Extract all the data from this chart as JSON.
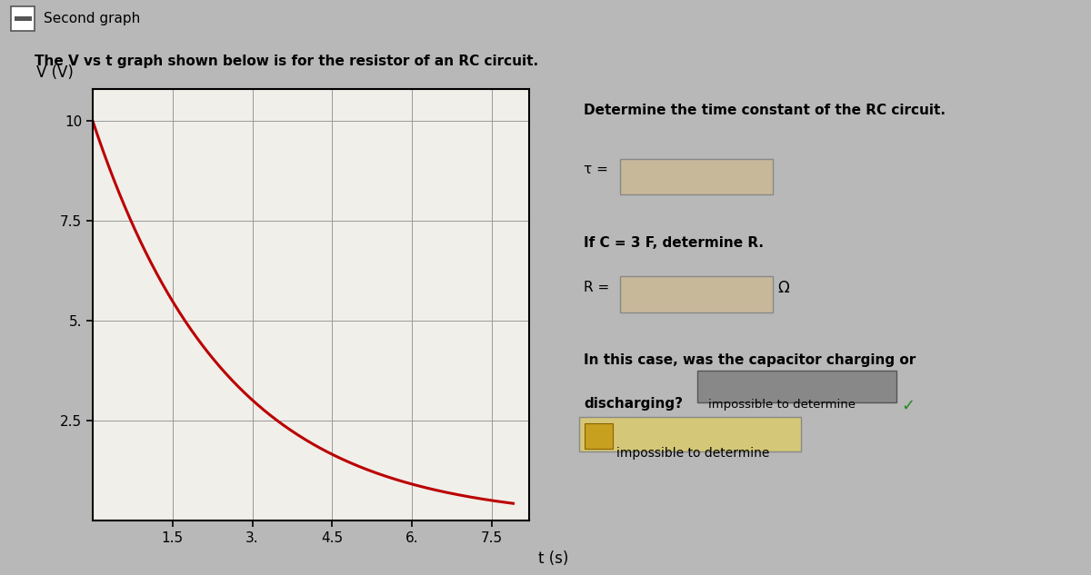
{
  "title_bar": "Second graph",
  "description": "The V vs t graph shown below is for the resistor of an RC circuit.",
  "ylabel": "V (V)",
  "xlabel": "t (s)",
  "ytick_vals": [
    2.5,
    5.0,
    7.5,
    10.0
  ],
  "ytick_labels": [
    "2.5",
    "5.",
    "7.5",
    "10"
  ],
  "xtick_vals": [
    1.5,
    3.0,
    4.5,
    6.0,
    7.5
  ],
  "xtick_labels": [
    "1.5",
    "3.",
    "4.5",
    "6.",
    "7.5"
  ],
  "xlim": [
    0,
    8.2
  ],
  "ylim": [
    0,
    10.8
  ],
  "curve_color": "#bb0000",
  "curve_linewidth": 2.2,
  "V0": 10.0,
  "tau": 2.5,
  "t_start": 0.0,
  "t_end": 7.9,
  "bg_color": "#b8b8b8",
  "plot_bg_color": "#f0efea",
  "header_bg_color": "#cccccc",
  "grid_color": "#999999",
  "input_box_color": "#c8b89a",
  "input_box_edge": "#888888",
  "ans_box_color": "#888888",
  "ans_box_edge": "#555555",
  "dropdown_bg": "#d4c878",
  "dropdown_edge": "#888888",
  "right_panel_text1": "Determine the time constant of the RC circuit.",
  "right_panel_tau_label": "τ =",
  "right_panel_text2": "If C = 3 F, determine R.",
  "right_panel_R_label": "R =",
  "right_panel_omega": "Ω",
  "right_panel_text3a": "In this case, was the capacitor charging or",
  "right_panel_text3b": "discharging?",
  "right_panel_answer_box": "impossible to determine",
  "right_panel_checkmark": "✓",
  "right_panel_dropdown_text": "impossible to determine"
}
